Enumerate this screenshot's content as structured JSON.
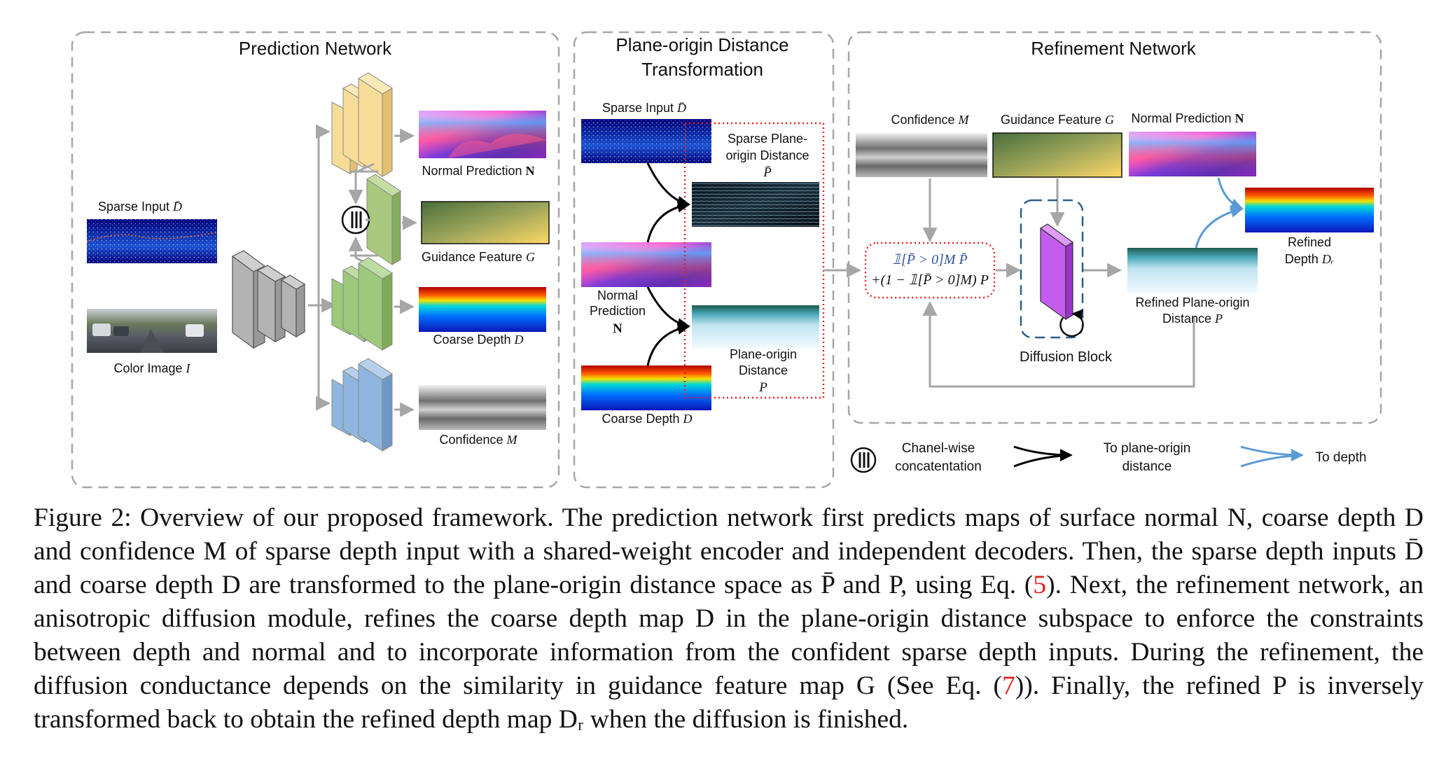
{
  "sections": {
    "prediction": "Prediction Network",
    "transform_l1": "Plane-origin Distance",
    "transform_l2": "Transformation",
    "refinement": "Refinement Network"
  },
  "labels": {
    "sparse_input": "Sparse Input",
    "sparse_input_sym": "D̄",
    "color_image": "Color Image",
    "color_image_sym": "I",
    "normal_prediction": "Normal Prediction",
    "normal_sym": "N",
    "guidance_feature": "Guidance Feature",
    "guidance_sym": "G",
    "coarse_depth": "Coarse Depth",
    "coarse_sym": "D",
    "confidence": "Confidence",
    "confidence_sym": "M",
    "pod_sparse_input": "Sparse Input",
    "sparse_pod_l1": "Sparse Plane-",
    "sparse_pod_l2": "origin Distance",
    "sparse_pod_sym": "P̄",
    "pod_normal_l1": "Normal",
    "pod_normal_l2": "Prediction",
    "pod_normal_sym": "N",
    "pod_l1": "Plane-origin",
    "pod_l2": "Distance",
    "pod_sym": "P",
    "pod_coarse": "Coarse Depth",
    "ref_confidence": "Confidence",
    "ref_guidance": "Guidance Feature",
    "ref_normal": "Normal Prediction",
    "formula_l1": "𝟙[P̄ > 0]M P̄",
    "formula_l2": "+(1 − 𝟙[P̄ > 0]M) P",
    "diffusion_block": "Diffusion Block",
    "refined_pod_l1": "Refined Plane-origin",
    "refined_pod_l2": "Distance",
    "refined_pod_sym": "P",
    "refined_depth_l1": "Refined",
    "refined_depth_l2": "Depth",
    "refined_depth_sym": "Dᵣ"
  },
  "legend": {
    "concat_l1": "Chanel-wise",
    "concat_l2": "concatentation",
    "to_pod_l1": "To plane-origin",
    "to_pod_l2": "distance",
    "to_depth": "To depth"
  },
  "caption": {
    "lead": "Figure 2: Overview of our proposed framework. The prediction network first predicts maps of surface normal N, coarse depth D and confidence M of sparse depth input with a shared-weight encoder and independent decoders. Then, the sparse depth inputs D̄ and coarse depth D are transformed to the plane-origin distance space as P̄ and P, using Eq. (",
    "ref1": "5",
    "mid": "). Next, the refinement network, an anisotropic diffusion module, refines the coarse depth map D in the plane-origin distance subspace to enforce the constraints between depth and normal and to incorporate information from the confident sparse depth inputs. During the refinement, the diffusion conductance depends on the similarity in guidance feature map G (See Eq. (",
    "ref2": "7",
    "tail": ")). Finally, the refined P is inversely transformed back to obtain the refined depth map Dᵣ when the diffusion is finished."
  },
  "colors": {
    "normal_block": "#f6dc96",
    "guidance_block": "#a9c97e",
    "coarse_block": "#9dc97a",
    "confidence_block": "#8fb6de",
    "encoder_block": "#b3b3b3",
    "diffusion_block": "#c35df0",
    "blue_arrow": "#5b9bd5",
    "dotted_red": "#e0211b"
  }
}
